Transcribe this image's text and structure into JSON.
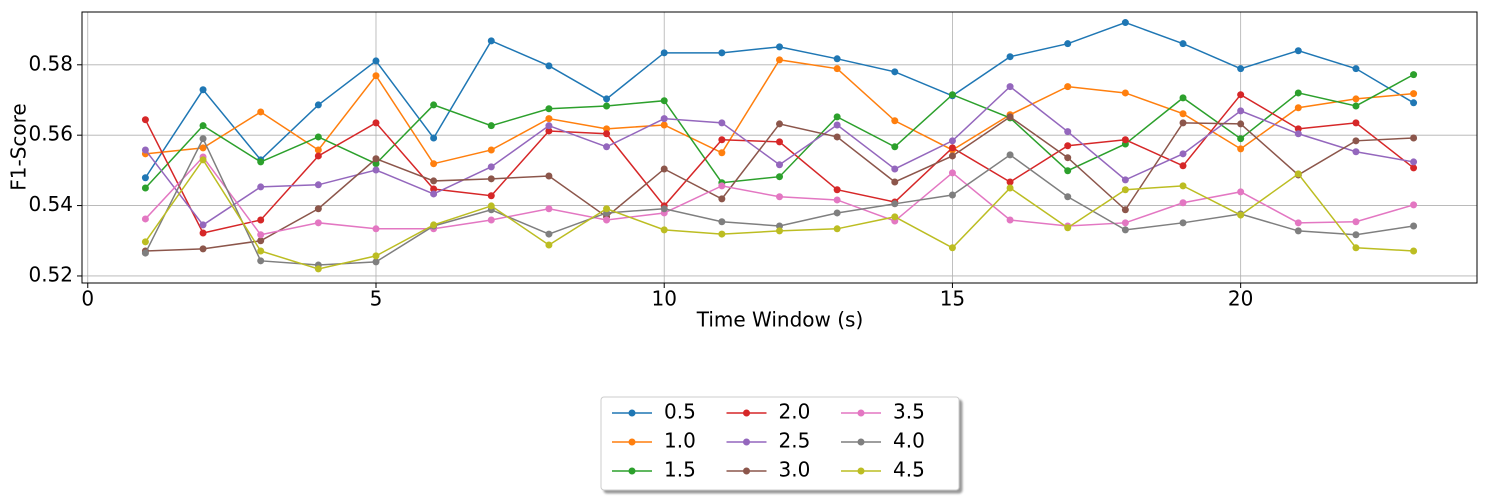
{
  "chart_data": {
    "type": "line",
    "xlabel": "Time Window (s)",
    "ylabel": "F1-Score",
    "x": [
      1,
      2,
      3,
      4,
      5,
      6,
      7,
      8,
      9,
      10,
      11,
      12,
      13,
      14,
      15,
      16,
      17,
      18,
      19,
      20,
      21,
      22,
      23
    ],
    "series": [
      {
        "name": "0.5",
        "color": "#1f77b4",
        "values": [
          0.5479,
          0.5729,
          0.553,
          0.5686,
          0.5811,
          0.5592,
          0.5868,
          0.5797,
          0.5703,
          0.5834,
          0.5834,
          0.5851,
          0.5817,
          0.578,
          0.5712,
          0.5823,
          0.586,
          0.592,
          0.586,
          0.5789,
          0.584,
          0.5789,
          0.5692
        ]
      },
      {
        "name": "1.0",
        "color": "#ff7f0e",
        "values": [
          0.5547,
          0.5564,
          0.5666,
          0.5558,
          0.5769,
          0.5519,
          0.5558,
          0.5647,
          0.5618,
          0.5629,
          0.555,
          0.5814,
          0.5789,
          0.5641,
          0.5558,
          0.5658,
          0.5738,
          0.572,
          0.5661,
          0.5561,
          0.5678,
          0.5703,
          0.5718
        ]
      },
      {
        "name": "1.5",
        "color": "#2ca02c",
        "values": [
          0.545,
          0.5627,
          0.5524,
          0.5595,
          0.5519,
          0.5686,
          0.5627,
          0.5675,
          0.5683,
          0.5698,
          0.5465,
          0.5482,
          0.5652,
          0.5567,
          0.5715,
          0.5649,
          0.5499,
          0.5575,
          0.5706,
          0.559,
          0.572,
          0.5683,
          0.5772
        ]
      },
      {
        "name": "2.0",
        "color": "#d62728",
        "values": [
          0.5644,
          0.5322,
          0.5359,
          0.5541,
          0.5635,
          0.5447,
          0.5428,
          0.5612,
          0.5604,
          0.5399,
          0.5587,
          0.5581,
          0.5445,
          0.541,
          0.5564,
          0.5467,
          0.557,
          0.5587,
          0.5513,
          0.5715,
          0.5618,
          0.5635,
          0.5507
        ]
      },
      {
        "name": "2.5",
        "color": "#9467bd",
        "values": [
          0.5558,
          0.5345,
          0.5453,
          0.5459,
          0.5501,
          0.5433,
          0.551,
          0.5627,
          0.5567,
          0.5647,
          0.5635,
          0.5516,
          0.5629,
          0.5504,
          0.5584,
          0.5738,
          0.561,
          0.5473,
          0.5547,
          0.5669,
          0.5604,
          0.5553,
          0.5524
        ]
      },
      {
        "name": "3.0",
        "color": "#8c564b",
        "values": [
          0.5271,
          0.5277,
          0.53,
          0.5391,
          0.5533,
          0.547,
          0.5476,
          0.5484,
          0.5368,
          0.5504,
          0.5419,
          0.5632,
          0.5595,
          0.5467,
          0.5541,
          0.5652,
          0.5536,
          0.5388,
          0.5635,
          0.5632,
          0.5487,
          0.5584,
          0.5592
        ]
      },
      {
        "name": "3.5",
        "color": "#e377c2",
        "values": [
          0.5362,
          0.5538,
          0.5317,
          0.5351,
          0.5334,
          0.5334,
          0.5359,
          0.5391,
          0.5359,
          0.5379,
          0.5456,
          0.5425,
          0.5416,
          0.5356,
          0.5493,
          0.5359,
          0.5342,
          0.5351,
          0.5408,
          0.5439,
          0.5351,
          0.5354,
          0.5402
        ]
      },
      {
        "name": "4.0",
        "color": "#7f7f7f",
        "values": [
          0.5265,
          0.559,
          0.5243,
          0.5231,
          0.524,
          0.5342,
          0.5388,
          0.5319,
          0.5379,
          0.5391,
          0.5354,
          0.5342,
          0.5379,
          0.5405,
          0.543,
          0.5544,
          0.5425,
          0.5331,
          0.5351,
          0.5376,
          0.5328,
          0.5317,
          0.5342
        ]
      },
      {
        "name": "4.5",
        "color": "#bcbd22",
        "values": [
          0.5297,
          0.553,
          0.5271,
          0.522,
          0.5257,
          0.5345,
          0.5399,
          0.5288,
          0.5391,
          0.5331,
          0.5319,
          0.5328,
          0.5334,
          0.5368,
          0.528,
          0.545,
          0.5337,
          0.5445,
          0.5456,
          0.5373,
          0.549,
          0.528,
          0.5271
        ]
      }
    ],
    "xlim": [
      -0.1,
      24.1
    ],
    "xticks": [
      0,
      5,
      10,
      15,
      20
    ],
    "ylim": [
      0.518,
      0.595
    ],
    "yticks": [
      0.52,
      0.54,
      0.56,
      0.58
    ],
    "grid": true
  }
}
